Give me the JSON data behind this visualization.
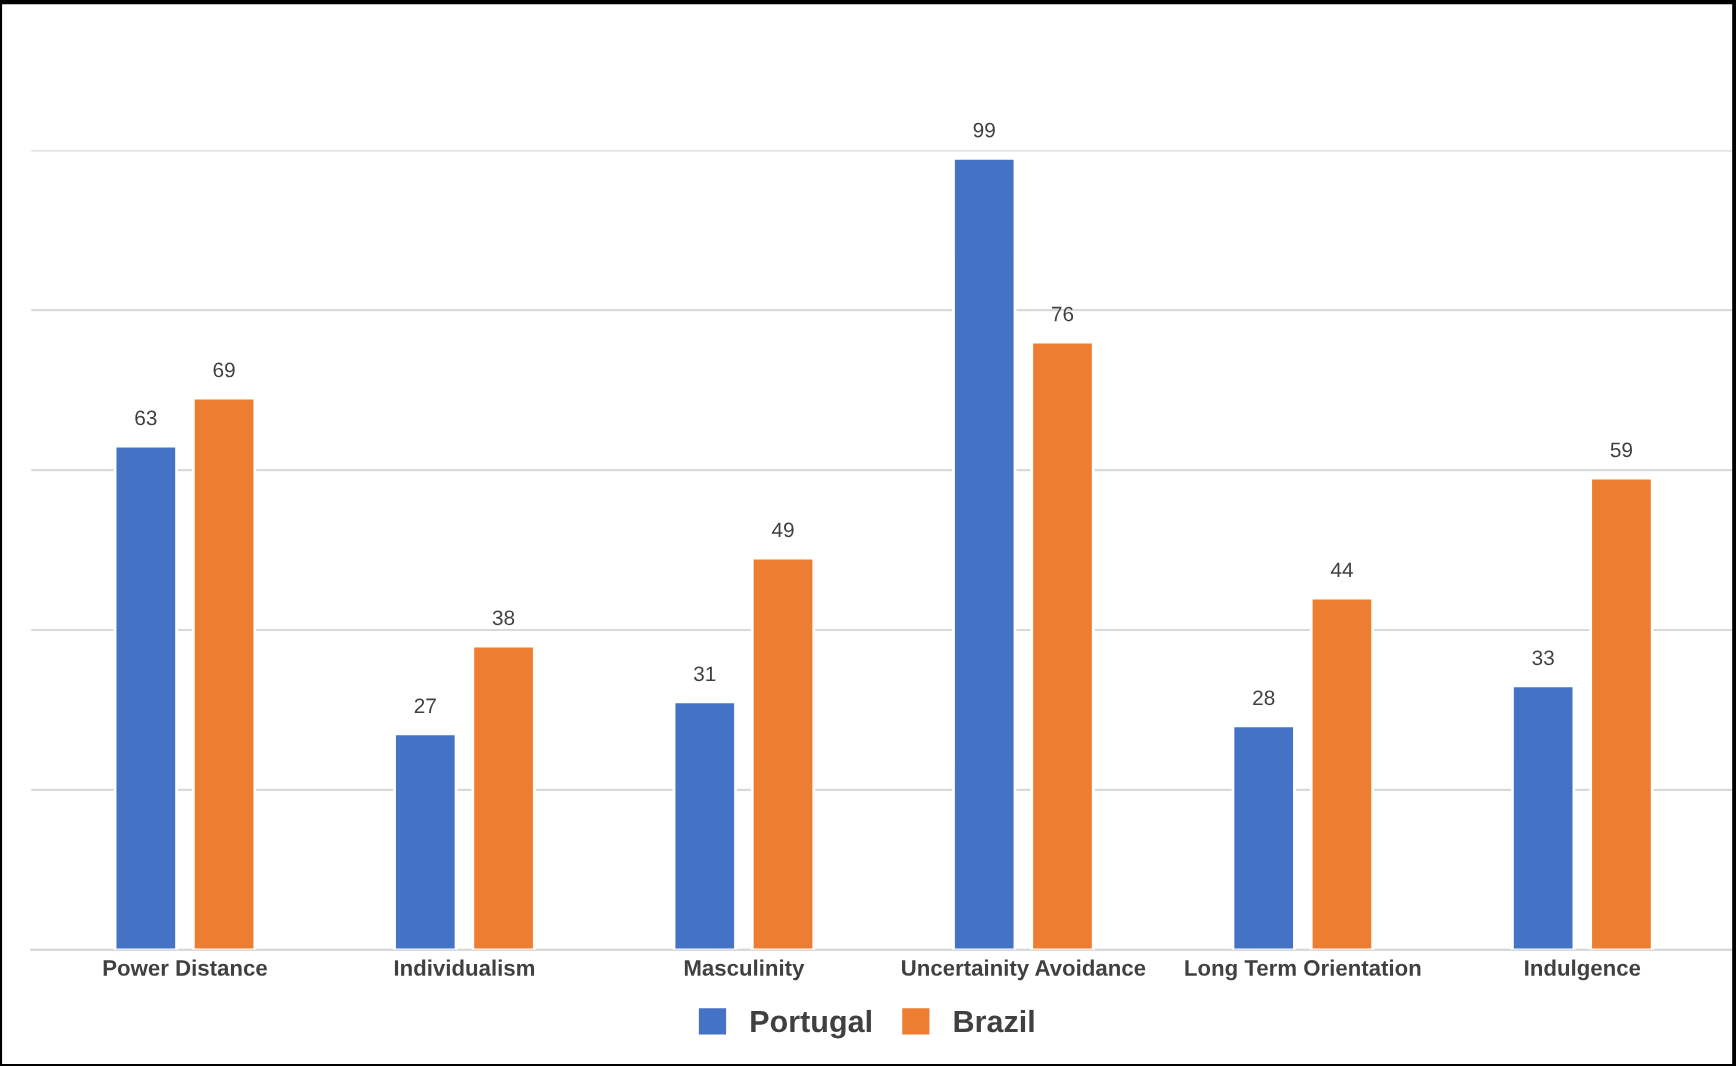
{
  "chart_data": {
    "type": "bar",
    "categories": [
      "Power Distance",
      "Individualism",
      "Masculinity",
      "Uncertainity Avoidance",
      "Long Term Orientation",
      "Indulgence"
    ],
    "series": [
      {
        "name": "Portugal",
        "color": "#4472c4",
        "values": [
          63,
          27,
          31,
          99,
          28,
          33
        ]
      },
      {
        "name": "Brazil",
        "color": "#ed7d31",
        "values": [
          69,
          38,
          49,
          76,
          44,
          59
        ]
      }
    ],
    "ylim": [
      0,
      100
    ],
    "yticks": [
      {
        "value": 0,
        "label": null
      },
      {
        "value": 20,
        "label": null
      },
      {
        "value": 40,
        "label": null
      },
      {
        "value": 60,
        "label": null
      },
      {
        "value": 80,
        "label": null
      },
      {
        "value": 100,
        "label": null
      }
    ],
    "tick_labels": "x",
    "grid": "y",
    "data_labels": true,
    "legend": "bottom"
  }
}
